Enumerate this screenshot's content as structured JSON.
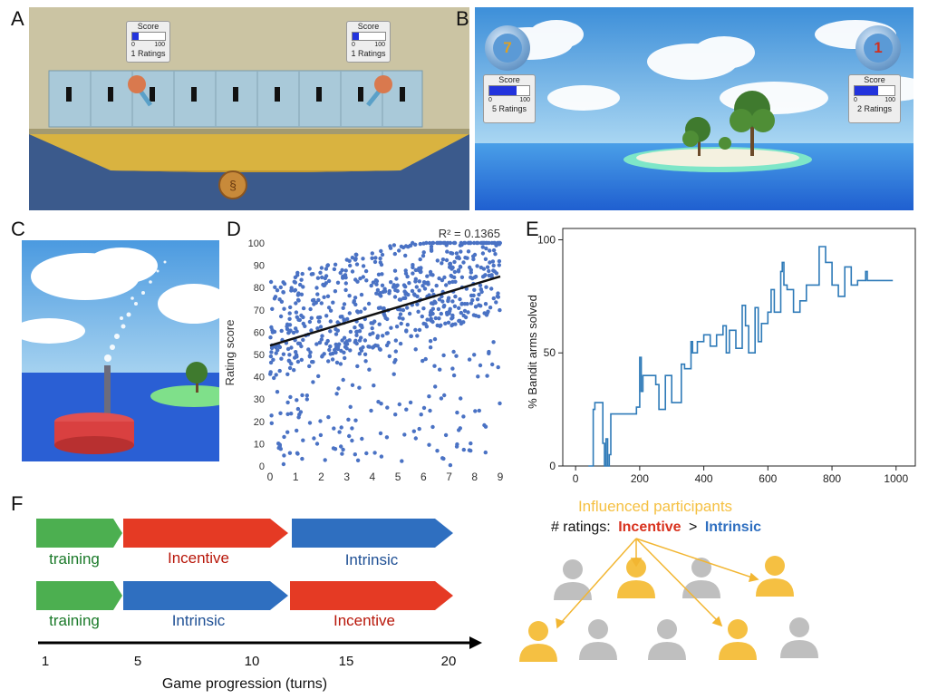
{
  "panels": {
    "a": {
      "letter": "A",
      "score_boxes": [
        {
          "title": "Score",
          "min": "0",
          "max": "100",
          "ratings": "1 Ratings",
          "fill": 0.2
        },
        {
          "title": "Score",
          "min": "0",
          "max": "100",
          "ratings": "1 Ratings",
          "fill": 0.2
        }
      ]
    },
    "b": {
      "letter": "B",
      "badges": [
        "7",
        "1"
      ],
      "score_boxes": [
        {
          "title": "Score",
          "min": "0",
          "max": "100",
          "ratings": "5 Ratings",
          "fill": 0.68
        },
        {
          "title": "Score",
          "min": "0",
          "max": "100",
          "ratings": "2 Ratings",
          "fill": 0.6
        }
      ]
    },
    "c": {
      "letter": "C"
    },
    "d": {
      "letter": "D"
    },
    "e": {
      "letter": "E"
    },
    "f": {
      "letter": "F"
    }
  },
  "chart_data": [
    {
      "type": "scatter",
      "panel": "D",
      "xlabel": "",
      "ylabel": "Rating score",
      "xlim": [
        0,
        9
      ],
      "ylim": [
        0,
        100
      ],
      "xticks": [
        "0",
        "1",
        "2",
        "3",
        "4",
        "5",
        "6",
        "7",
        "8",
        "9"
      ],
      "yticks": [
        "0",
        "10",
        "20",
        "30",
        "40",
        "50",
        "60",
        "70",
        "80",
        "90",
        "100"
      ],
      "annotation": "R² = 0.1365",
      "trendline": {
        "x": [
          0,
          9
        ],
        "y": [
          54,
          85
        ]
      },
      "point_color": "#4a72c4",
      "n_points": 800
    },
    {
      "type": "line",
      "panel": "E",
      "xlabel": "",
      "ylabel": "% Bandit arms solved",
      "xlim": [
        0,
        1000
      ],
      "ylim": [
        0,
        100
      ],
      "xticks": [
        "0",
        "200",
        "400",
        "600",
        "800",
        "1000"
      ],
      "yticks": [
        "0",
        "50",
        "100"
      ],
      "line_color": "#2e7ab8",
      "x": [
        40,
        50,
        55,
        60,
        65,
        70,
        80,
        85,
        90,
        95,
        100,
        105,
        110,
        150,
        190,
        200,
        205,
        210,
        250,
        260,
        280,
        300,
        330,
        340,
        360,
        365,
        380,
        400,
        420,
        440,
        460,
        470,
        480,
        500,
        520,
        530,
        540,
        560,
        570,
        580,
        600,
        610,
        620,
        640,
        645,
        650,
        660,
        680,
        700,
        720,
        760,
        780,
        800,
        820,
        840,
        860,
        880,
        900,
        905,
        910,
        940,
        990
      ],
      "y": [
        0,
        0,
        25,
        28,
        28,
        28,
        28,
        10,
        0,
        12,
        0,
        5,
        23,
        23,
        26,
        48,
        33,
        40,
        36,
        25,
        40,
        28,
        45,
        43,
        55,
        50,
        55,
        58,
        53,
        58,
        62,
        50,
        60,
        52,
        71,
        62,
        50,
        70,
        55,
        63,
        68,
        78,
        68,
        86,
        90,
        80,
        78,
        68,
        73,
        80,
        97,
        90,
        80,
        75,
        88,
        80,
        82,
        82,
        86,
        82,
        82,
        82
      ]
    }
  ],
  "timeline": {
    "row1": [
      {
        "label": "training",
        "color": "#4caf50",
        "text_color": "#1b7a2a"
      },
      {
        "label": "Incentive",
        "color": "#e53a24",
        "text_color": "#b8170a"
      },
      {
        "label": "Intrinsic",
        "color": "#2f6fc0",
        "text_color": "#1e4f94"
      }
    ],
    "row2": [
      {
        "label": "training",
        "color": "#4caf50",
        "text_color": "#1b7a2a"
      },
      {
        "label": "Intrinsic",
        "color": "#2f6fc0",
        "text_color": "#1e4f94"
      },
      {
        "label": "Incentive",
        "color": "#e53a24",
        "text_color": "#b8170a"
      }
    ],
    "axis_ticks": [
      "1",
      "5",
      "10",
      "15",
      "20"
    ],
    "axis_label": "Game progression (turns)"
  },
  "influence": {
    "title": "Influenced participants",
    "title_color": "#f5c042",
    "ratings_prefix": "# ratings:",
    "incentive": "Incentive",
    "gt": ">",
    "intrinsic": "Intrinsic",
    "influenced_color": "#f5c042",
    "other_color": "#bfbfbf"
  }
}
